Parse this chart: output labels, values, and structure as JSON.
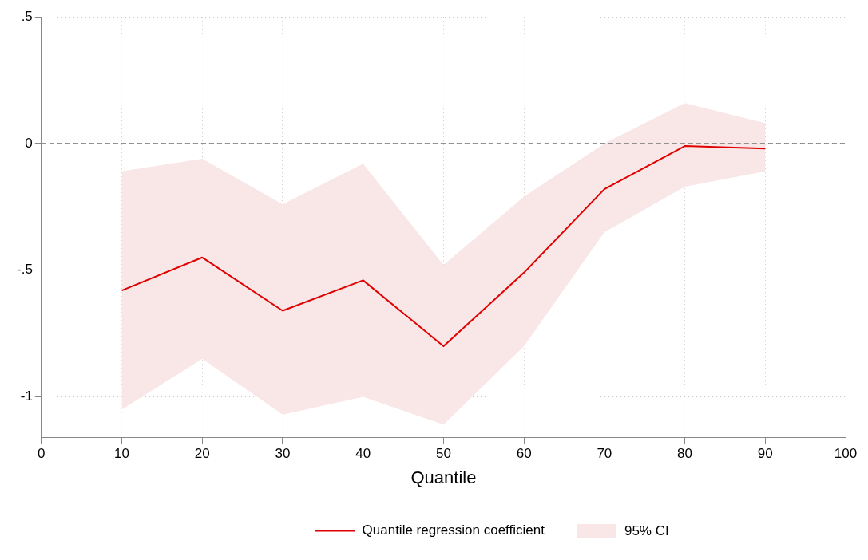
{
  "chart_data": {
    "type": "line",
    "xlabel": "Quantile",
    "x": [
      10,
      20,
      30,
      40,
      50,
      60,
      70,
      80,
      90
    ],
    "series": [
      {
        "name": "Quantile regression coefficient",
        "color": "#e00000",
        "values": [
          -0.58,
          -0.45,
          -0.66,
          -0.54,
          -0.8,
          -0.51,
          -0.18,
          -0.01,
          -0.02
        ],
        "lower": [
          -1.05,
          -0.85,
          -1.07,
          -1.0,
          -1.11,
          -0.8,
          -0.35,
          -0.17,
          -0.11
        ],
        "upper": [
          -0.11,
          -0.06,
          -0.24,
          -0.08,
          -0.48,
          -0.21,
          0.0,
          0.16,
          0.08
        ]
      }
    ],
    "annotations": [
      "95% CI"
    ],
    "xlim": [
      0,
      100
    ],
    "xticks": [
      0,
      10,
      20,
      30,
      40,
      50,
      60,
      70,
      80,
      90,
      100
    ],
    "ylim": [
      -1.16,
      0.5
    ],
    "yticks": [
      {
        "value": -1,
        "label": "-1"
      },
      {
        "value": -0.5,
        "label": "-.5"
      },
      0,
      {
        "value": 0.5,
        "label": ".5"
      }
    ],
    "ref_lines": [
      {
        "axis": "y",
        "value": 0,
        "color": "#707070",
        "line_style": "dashed"
      }
    ],
    "grid": true,
    "legend": "bottom",
    "marker": "none",
    "line_style": "solid"
  }
}
